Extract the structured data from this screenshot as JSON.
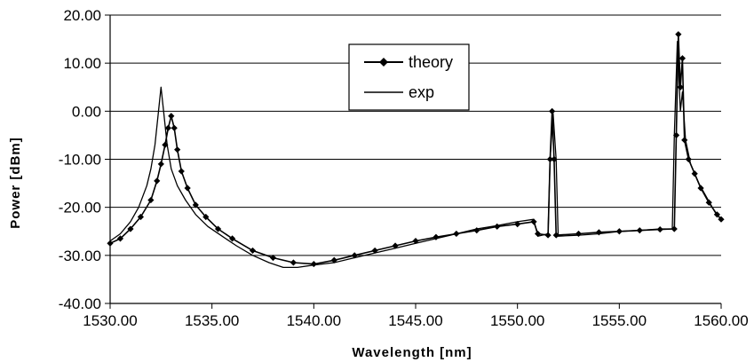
{
  "chart_data": {
    "type": "line",
    "xlabel": "Wavelength [nm]",
    "ylabel": "Power [dBm]",
    "xlim": [
      1530,
      1560
    ],
    "ylim": [
      -40,
      20
    ],
    "x_ticks": [
      1530,
      1535,
      1540,
      1545,
      1550,
      1555,
      1560
    ],
    "x_tick_labels": [
      "1530.00",
      "1535.00",
      "1540.00",
      "1545.00",
      "1550.00",
      "1555.00",
      "1560.00"
    ],
    "y_ticks": [
      -40,
      -30,
      -20,
      -10,
      0,
      10,
      20
    ],
    "y_tick_labels": [
      "-40.00",
      "-30.00",
      "-20.00",
      "-10.00",
      "0.00",
      "10.00",
      "20.00"
    ],
    "grid": "horizontal",
    "legend": "top-center",
    "series": [
      {
        "name": "theory",
        "marker": "diamond",
        "points": [
          [
            1530.0,
            -27.5
          ],
          [
            1530.5,
            -26.5
          ],
          [
            1531.0,
            -24.5
          ],
          [
            1531.5,
            -22.0
          ],
          [
            1532.0,
            -18.5
          ],
          [
            1532.3,
            -14.5
          ],
          [
            1532.5,
            -11.0
          ],
          [
            1532.7,
            -7.0
          ],
          [
            1532.85,
            -3.5
          ],
          [
            1533.0,
            -1.0
          ],
          [
            1533.15,
            -3.5
          ],
          [
            1533.3,
            -8.0
          ],
          [
            1533.5,
            -12.5
          ],
          [
            1533.8,
            -16.0
          ],
          [
            1534.2,
            -19.5
          ],
          [
            1534.7,
            -22.0
          ],
          [
            1535.3,
            -24.5
          ],
          [
            1536.0,
            -26.5
          ],
          [
            1537.0,
            -29.0
          ],
          [
            1538.0,
            -30.5
          ],
          [
            1539.0,
            -31.5
          ],
          [
            1540.0,
            -31.8
          ],
          [
            1541.0,
            -31.0
          ],
          [
            1542.0,
            -30.0
          ],
          [
            1543.0,
            -29.0
          ],
          [
            1544.0,
            -28.0
          ],
          [
            1545.0,
            -27.0
          ],
          [
            1546.0,
            -26.2
          ],
          [
            1547.0,
            -25.5
          ],
          [
            1548.0,
            -24.8
          ],
          [
            1549.0,
            -24.0
          ],
          [
            1550.0,
            -23.5
          ],
          [
            1550.8,
            -23.0
          ],
          [
            1551.0,
            -25.5
          ],
          [
            1551.5,
            -25.8
          ],
          [
            1551.6,
            -10.0
          ],
          [
            1551.7,
            0.0
          ],
          [
            1551.8,
            -10.0
          ],
          [
            1551.9,
            -25.8
          ],
          [
            1553.0,
            -25.5
          ],
          [
            1554.0,
            -25.2
          ],
          [
            1555.0,
            -25.0
          ],
          [
            1556.0,
            -24.8
          ],
          [
            1557.0,
            -24.6
          ],
          [
            1557.7,
            -24.5
          ],
          [
            1557.8,
            -5.0
          ],
          [
            1557.9,
            16.0
          ],
          [
            1558.0,
            5.0
          ],
          [
            1558.1,
            11.0
          ],
          [
            1558.2,
            -6.0
          ],
          [
            1558.4,
            -10.0
          ],
          [
            1558.7,
            -13.0
          ],
          [
            1559.0,
            -16.0
          ],
          [
            1559.4,
            -19.0
          ],
          [
            1559.8,
            -21.5
          ],
          [
            1560.0,
            -22.5
          ]
        ]
      },
      {
        "name": "exp",
        "marker": "none",
        "points": [
          [
            1530.0,
            -27.0
          ],
          [
            1530.5,
            -25.5
          ],
          [
            1531.0,
            -23.0
          ],
          [
            1531.4,
            -20.0
          ],
          [
            1531.8,
            -15.5
          ],
          [
            1532.0,
            -12.0
          ],
          [
            1532.2,
            -7.0
          ],
          [
            1532.35,
            -1.0
          ],
          [
            1532.5,
            5.0
          ],
          [
            1532.65,
            -1.0
          ],
          [
            1532.8,
            -7.0
          ],
          [
            1533.0,
            -12.0
          ],
          [
            1533.3,
            -15.5
          ],
          [
            1533.7,
            -18.5
          ],
          [
            1534.2,
            -21.5
          ],
          [
            1534.8,
            -24.0
          ],
          [
            1535.5,
            -26.0
          ],
          [
            1536.2,
            -28.0
          ],
          [
            1537.0,
            -30.0
          ],
          [
            1537.8,
            -31.5
          ],
          [
            1538.5,
            -32.5
          ],
          [
            1539.2,
            -32.5
          ],
          [
            1540.0,
            -32.0
          ],
          [
            1541.0,
            -31.5
          ],
          [
            1542.0,
            -30.5
          ],
          [
            1543.0,
            -29.5
          ],
          [
            1544.0,
            -28.5
          ],
          [
            1545.0,
            -27.5
          ],
          [
            1546.0,
            -26.5
          ],
          [
            1547.0,
            -25.5
          ],
          [
            1548.0,
            -24.5
          ],
          [
            1549.0,
            -23.8
          ],
          [
            1550.0,
            -23.0
          ],
          [
            1550.8,
            -22.5
          ],
          [
            1551.0,
            -26.0
          ],
          [
            1551.5,
            -25.5
          ],
          [
            1551.6,
            -10.0
          ],
          [
            1551.75,
            -0.5
          ],
          [
            1551.9,
            -10.0
          ],
          [
            1552.0,
            -26.0
          ],
          [
            1553.0,
            -25.8
          ],
          [
            1554.0,
            -25.5
          ],
          [
            1555.0,
            -25.0
          ],
          [
            1556.0,
            -24.8
          ],
          [
            1557.0,
            -24.5
          ],
          [
            1557.6,
            -24.5
          ],
          [
            1557.7,
            -5.0
          ],
          [
            1557.85,
            14.5
          ],
          [
            1558.0,
            0.0
          ],
          [
            1558.1,
            4.0
          ],
          [
            1558.25,
            -6.0
          ],
          [
            1558.5,
            -11.0
          ],
          [
            1558.9,
            -15.0
          ],
          [
            1559.3,
            -18.0
          ],
          [
            1559.7,
            -21.0
          ],
          [
            1560.0,
            -22.5
          ]
        ]
      }
    ]
  }
}
